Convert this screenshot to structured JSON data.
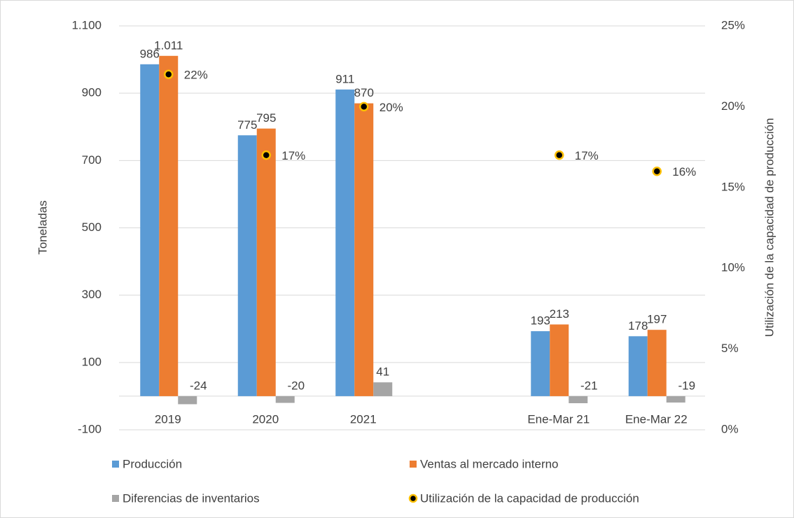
{
  "chart_data": {
    "type": "bar",
    "y_label": "Toneladas",
    "y2_label": "Utilización de la capacidad de producción",
    "categories": [
      "2019",
      "2020",
      "2021",
      null,
      "Ene-Mar 21",
      "Ene-Mar 22"
    ],
    "series": [
      {
        "name": "Producción",
        "color": "#5b9bd5",
        "values": [
          986,
          775,
          911,
          null,
          193,
          178
        ]
      },
      {
        "name": "Ventas al mercado interno",
        "color": "#ed7d31",
        "values": [
          1011,
          795,
          870,
          null,
          213,
          197
        ],
        "value_labels": [
          "1.011",
          "795",
          "870",
          null,
          "213",
          "197"
        ]
      },
      {
        "name": "Diferencias de inventarios",
        "color": "#a5a5a5",
        "values": [
          -24,
          -20,
          41,
          null,
          -21,
          -19
        ]
      },
      {
        "name": "Utilización de la capacidad de producción",
        "type": "marker",
        "color": "#000000",
        "edgecolor": "#ffc000",
        "axis": "y2",
        "values": [
          22,
          17,
          20,
          null,
          17,
          16
        ],
        "value_labels": [
          "22%",
          "17%",
          "20%",
          null,
          "17%",
          "16%"
        ]
      }
    ],
    "ylim": [
      -100,
      1100
    ],
    "yticks": [
      -100,
      100,
      300,
      500,
      700,
      900,
      {
        "value": 1100,
        "label": "1.100"
      }
    ],
    "y2lim": [
      0,
      25
    ],
    "y2ticks": [
      {
        "value": 0,
        "label": "0%"
      },
      {
        "value": 5,
        "label": "5%"
      },
      {
        "value": 10,
        "label": "10%"
      },
      {
        "value": 15,
        "label": "15%"
      },
      {
        "value": 20,
        "label": "20%"
      },
      {
        "value": 25,
        "label": "25%"
      }
    ],
    "grid": true,
    "legend": "bottom"
  }
}
